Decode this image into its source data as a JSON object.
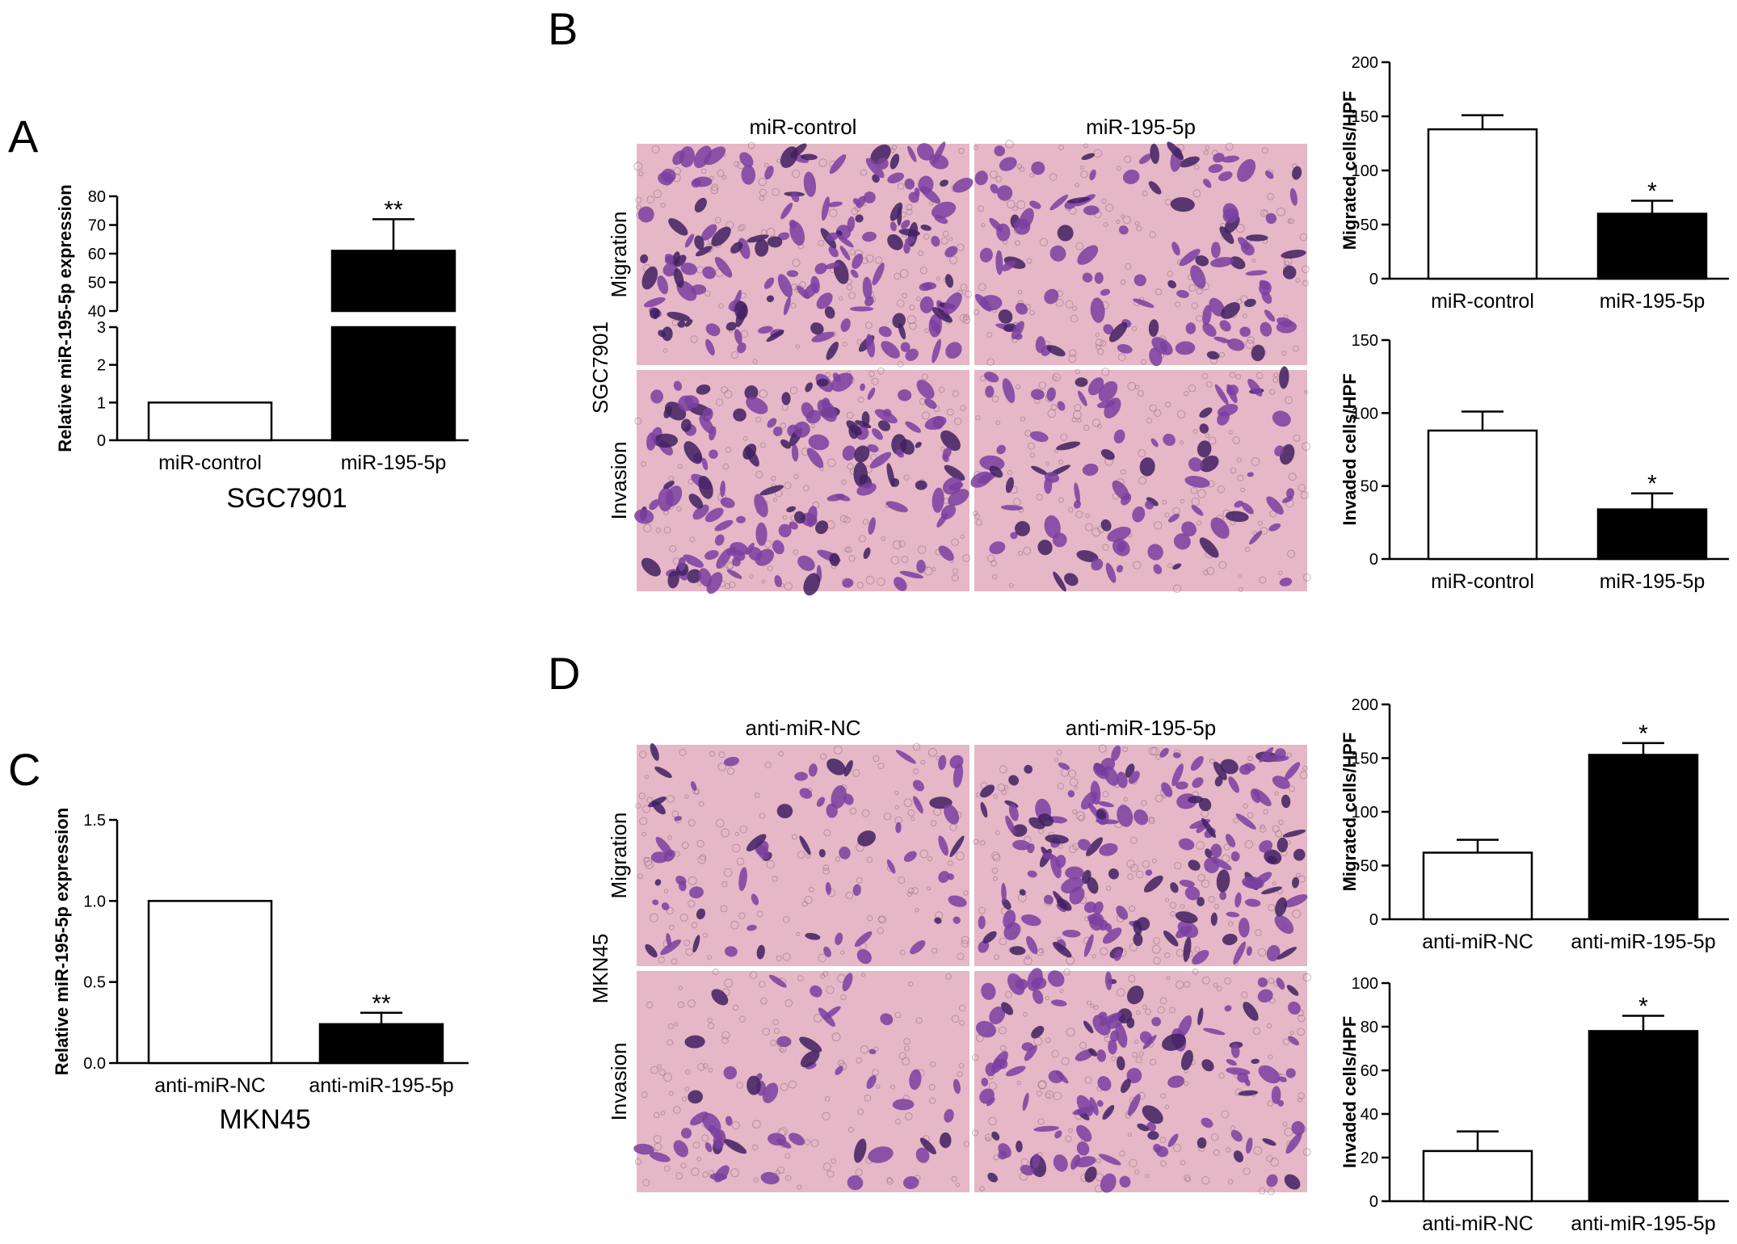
{
  "panels": {
    "A": "A",
    "B": "B",
    "C": "C",
    "D": "D"
  },
  "micrographs": [
    {
      "id": "B",
      "cell_line": "SGC7901",
      "columns": [
        "miR-control",
        "miR-195-5p"
      ],
      "rows": [
        "Migration",
        "Invasion"
      ],
      "density": [
        [
          160,
          110
        ],
        [
          150,
          90
        ]
      ]
    },
    {
      "id": "D",
      "cell_line": "MKN45",
      "columns": [
        "anti-miR-NC",
        "anti-miR-195-5p"
      ],
      "rows": [
        "Migration",
        "Invasion"
      ],
      "density": [
        [
          70,
          160
        ],
        [
          50,
          120
        ]
      ]
    }
  ],
  "colors": {
    "tissue": "#e6b7c6",
    "stain": "#7a3fa0",
    "stain_dark": "#3f2060",
    "pore": "#8a6a7a"
  },
  "chart_data": [
    {
      "id": "A",
      "type": "bar",
      "title": "SGC7901",
      "ylabel": "Relative miR-195-5p expression",
      "categories": [
        "miR-control",
        "miR-195-5p"
      ],
      "values": [
        1.0,
        61
      ],
      "errors": [
        0,
        11
      ],
      "fills": [
        "#ffffff",
        "#000000"
      ],
      "annotations": [
        "",
        "**"
      ],
      "broken_axis": true,
      "lower_segment": {
        "range": [
          0,
          3
        ],
        "ticks": [
          "0",
          "1",
          "2",
          "3"
        ]
      },
      "upper_segment": {
        "range": [
          40,
          80
        ],
        "ticks": [
          "40",
          "50",
          "60",
          "70",
          "80"
        ]
      }
    },
    {
      "id": "C",
      "type": "bar",
      "title": "MKN45",
      "ylabel": "Relative miR-195-5p expression",
      "categories": [
        "anti-miR-NC",
        "anti-miR-195-5p"
      ],
      "values": [
        1.0,
        0.24
      ],
      "errors": [
        0,
        0.07
      ],
      "fills": [
        "#ffffff",
        "#000000"
      ],
      "annotations": [
        "",
        "**"
      ],
      "ylim": [
        0,
        1.5
      ],
      "ticks": [
        "0.0",
        "0.5",
        "1.0",
        "1.5"
      ]
    },
    {
      "id": "B-migration",
      "type": "bar",
      "ylabel": "Migrated cells/HPF",
      "categories": [
        "miR-control",
        "miR-195-5p"
      ],
      "values": [
        138,
        60
      ],
      "errors": [
        13,
        12
      ],
      "fills": [
        "#ffffff",
        "#000000"
      ],
      "annotations": [
        "",
        "*"
      ],
      "ylim": [
        0,
        200
      ],
      "ticks": [
        "0",
        "50",
        "100",
        "150",
        "200"
      ]
    },
    {
      "id": "B-invasion",
      "type": "bar",
      "ylabel": "Invaded cells/HPF",
      "categories": [
        "miR-control",
        "miR-195-5p"
      ],
      "values": [
        88,
        34
      ],
      "errors": [
        13,
        11
      ],
      "fills": [
        "#ffffff",
        "#000000"
      ],
      "annotations": [
        "",
        "*"
      ],
      "ylim": [
        0,
        150
      ],
      "ticks": [
        "0",
        "50",
        "100",
        "150"
      ]
    },
    {
      "id": "D-migration",
      "type": "bar",
      "ylabel": "Migrated cells/HPF",
      "categories": [
        "anti-miR-NC",
        "anti-miR-195-5p"
      ],
      "values": [
        62,
        153
      ],
      "errors": [
        12,
        11
      ],
      "fills": [
        "#ffffff",
        "#000000"
      ],
      "annotations": [
        "",
        "*"
      ],
      "ylim": [
        0,
        200
      ],
      "ticks": [
        "0",
        "50",
        "100",
        "150",
        "200"
      ]
    },
    {
      "id": "D-invasion",
      "type": "bar",
      "ylabel": "Invaded cells/HPF",
      "categories": [
        "anti-miR-NC",
        "anti-miR-195-5p"
      ],
      "values": [
        23,
        78
      ],
      "errors": [
        9,
        7
      ],
      "fills": [
        "#ffffff",
        "#000000"
      ],
      "annotations": [
        "",
        "*"
      ],
      "ylim": [
        0,
        100
      ],
      "ticks": [
        "0",
        "20",
        "40",
        "60",
        "80",
        "100"
      ]
    }
  ]
}
